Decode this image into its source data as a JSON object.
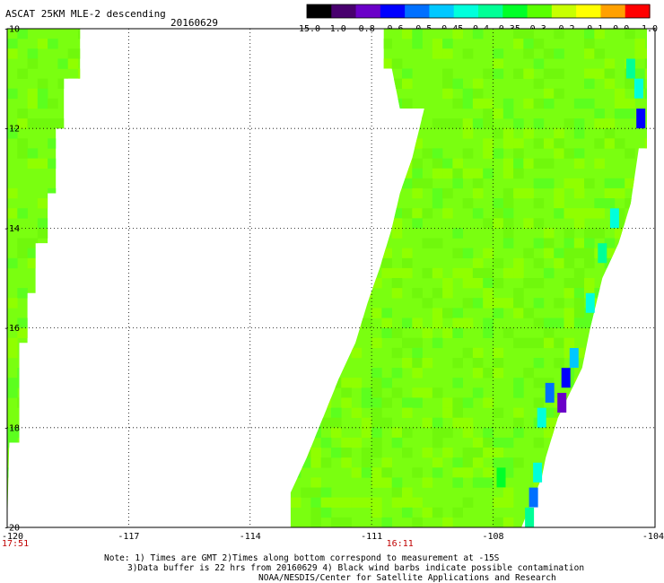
{
  "header": {
    "title": "ASCAT 25KM MLE-2 descending",
    "date": "20160629"
  },
  "colorbar": {
    "labels": [
      "-15.0",
      "-1.0",
      "-0.8",
      "-0.6",
      "-0.5",
      "-0.45",
      "-0.4",
      "-0.35",
      "-0.3",
      "-0.2",
      "-0.1",
      "0.0",
      "1.0"
    ],
    "colors": [
      "#000000",
      "#48006e",
      "#6a00c8",
      "#0000ff",
      "#0070ff",
      "#00c8ff",
      "#00ffdc",
      "#00ff96",
      "#00ff28",
      "#5aff00",
      "#c8ff00",
      "#ffff00",
      "#ffa000",
      "#ff0000"
    ]
  },
  "map": {
    "lon_range": [
      -120,
      -104
    ],
    "lat_range": [
      -20,
      -10
    ],
    "lon_ticks": [
      "-120",
      "-117",
      "-114",
      "-111",
      "-108",
      "-104"
    ],
    "lat_ticks": [
      "-10",
      "-12",
      "-14",
      "-16",
      "-18",
      "-20"
    ],
    "gridlines": true,
    "time_labels": [
      {
        "text": "17:51",
        "lon": -120
      },
      {
        "text": "16:11",
        "lon": -110.3
      }
    ],
    "swaths": [
      {
        "name": "western-swath",
        "polygon": [
          [
            -120,
            -10
          ],
          [
            -118.2,
            -10
          ],
          [
            -118.2,
            -11.0
          ],
          [
            -118.6,
            -11.0
          ],
          [
            -118.6,
            -12.0
          ],
          [
            -118.8,
            -12.0
          ],
          [
            -118.8,
            -13.3
          ],
          [
            -119.0,
            -13.3
          ],
          [
            -119.0,
            -14.3
          ],
          [
            -119.3,
            -14.3
          ],
          [
            -119.3,
            -15.3
          ],
          [
            -119.5,
            -15.3
          ],
          [
            -119.5,
            -16.3
          ],
          [
            -119.7,
            -16.3
          ],
          [
            -119.7,
            -18.3
          ],
          [
            -119.95,
            -18.3
          ],
          [
            -120,
            -20
          ]
        ],
        "dominant_value": -0.25
      },
      {
        "name": "eastern-swath",
        "polygon": [
          [
            -110.7,
            -10
          ],
          [
            -104.2,
            -10
          ],
          [
            -104.2,
            -12.4
          ],
          [
            -104.4,
            -12.4
          ],
          [
            -104.6,
            -13.5
          ],
          [
            -104.9,
            -14.3
          ],
          [
            -105.3,
            -15.0
          ],
          [
            -105.6,
            -16.0
          ],
          [
            -105.8,
            -16.8
          ],
          [
            -106.4,
            -17.8
          ],
          [
            -106.7,
            -18.6
          ],
          [
            -106.8,
            -19.0
          ],
          [
            -107.0,
            -19.4
          ],
          [
            -107.3,
            -20.0
          ],
          [
            -113.0,
            -20.0
          ],
          [
            -113.0,
            -19.3
          ],
          [
            -112.6,
            -18.6
          ],
          [
            -112.2,
            -17.8
          ],
          [
            -111.8,
            -17.0
          ],
          [
            -111.4,
            -16.3
          ],
          [
            -111.1,
            -15.5
          ],
          [
            -110.8,
            -14.8
          ],
          [
            -110.5,
            -14.0
          ],
          [
            -110.3,
            -13.3
          ],
          [
            -110.0,
            -12.6
          ],
          [
            -109.7,
            -11.6
          ],
          [
            -110.3,
            -11.6
          ],
          [
            -110.5,
            -10.8
          ],
          [
            -110.7,
            -10.8
          ]
        ],
        "dominant_value": -0.25
      }
    ],
    "anomalies": [
      {
        "lon": -104.6,
        "lat": -10.8,
        "value": -0.4
      },
      {
        "lon": -104.4,
        "lat": -11.2,
        "value": -0.45
      },
      {
        "lon": -104.35,
        "lat": -11.8,
        "value": -0.8
      },
      {
        "lon": -105.0,
        "lat": -13.8,
        "value": -0.45
      },
      {
        "lon": -105.3,
        "lat": -14.5,
        "value": -0.4
      },
      {
        "lon": -105.6,
        "lat": -15.5,
        "value": -0.45
      },
      {
        "lon": -106.0,
        "lat": -16.6,
        "value": -0.5
      },
      {
        "lon": -106.2,
        "lat": -17.0,
        "value": -0.8
      },
      {
        "lon": -106.3,
        "lat": -17.5,
        "value": -1.0
      },
      {
        "lon": -106.6,
        "lat": -17.3,
        "value": -0.6
      },
      {
        "lon": -106.8,
        "lat": -17.8,
        "value": -0.45
      },
      {
        "lon": -106.9,
        "lat": -18.9,
        "value": -0.45
      },
      {
        "lon": -107.0,
        "lat": -19.4,
        "value": -0.6
      },
      {
        "lon": -107.1,
        "lat": -19.8,
        "value": -0.4
      },
      {
        "lon": -107.8,
        "lat": -19.0,
        "value": -0.35
      }
    ]
  },
  "notes": {
    "line1": "Note: 1) Times are GMT 2)Times along bottom correspond to measurement at -15S",
    "line2": "3)Data buffer is 22 hrs from 20160629 4) Black wind barbs indicate possible contamination",
    "line3": "NOAA/NESDIS/Center for Satellite Applications and Research"
  }
}
